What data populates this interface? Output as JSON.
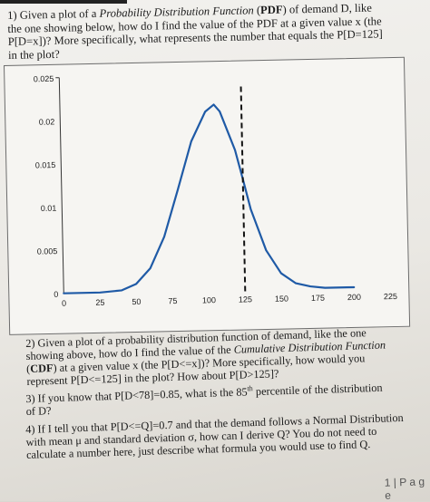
{
  "q1": {
    "p1": "1) Given a plot of a ",
    "p2": "Probability Distribution Function",
    "p3": " (",
    "p4": "PDF",
    "p5": ") of demand D, like the one showing below, how do I find the value of the PDF at a given value x (the P[D=x])? More specifically, what represents the number that equals the P[D=125] in the plot?"
  },
  "chart_data": {
    "type": "line",
    "title": "",
    "xlabel": "",
    "ylabel": "",
    "x_ticks": [
      "0",
      "25",
      "50",
      "75",
      "100",
      "125",
      "150",
      "175",
      "200",
      "225"
    ],
    "y_ticks": [
      "0",
      "0.005",
      "0.01",
      "0.015",
      "0.02",
      "0.025"
    ],
    "xlim": [
      0,
      225
    ],
    "ylim": [
      0,
      0.025
    ],
    "series": [
      {
        "x": [
          0,
          25,
          40,
          50,
          60,
          70,
          80,
          90,
          100,
          106,
          110,
          120,
          125,
          130,
          140,
          150,
          160,
          170,
          180,
          200
        ],
        "values": [
          0,
          0,
          0.0002,
          0.0009,
          0.0027,
          0.0063,
          0.0117,
          0.0173,
          0.0207,
          0.0215,
          0.0207,
          0.0162,
          0.0128,
          0.0093,
          0.0045,
          0.0018,
          0.0006,
          0.0002,
          0,
          0
        ]
      }
    ],
    "vline_x": 125,
    "grid": false,
    "curve_color": "#1f5aa6"
  },
  "q2": {
    "p1": "2)  Given a plot of a probability distribution function of demand, like the one showing above, how do I find the value of the ",
    "p2": "Cumulative Distribution Function",
    "p3": " (",
    "p4": "CDF",
    "p5": ") at a given value x (the P[D<=x])? More specifically, how would you represent P[D<=125] in the plot? How about P[D>125]?"
  },
  "q3": {
    "p1": "3)  If you know that P[D<78]=0.85, what is the 85",
    "p2": "th",
    "p3": " percentile of the distribution of D?"
  },
  "q4": {
    "text": "4)  If I tell you that P[D<=Q]=0.7 and that the demand follows a Normal Distribution with mean μ and standard deviation σ, how can I derive Q? You do not need to calculate a number here, just describe what formula you would use to find Q."
  },
  "footer": {
    "page": "1 | P a g e"
  }
}
